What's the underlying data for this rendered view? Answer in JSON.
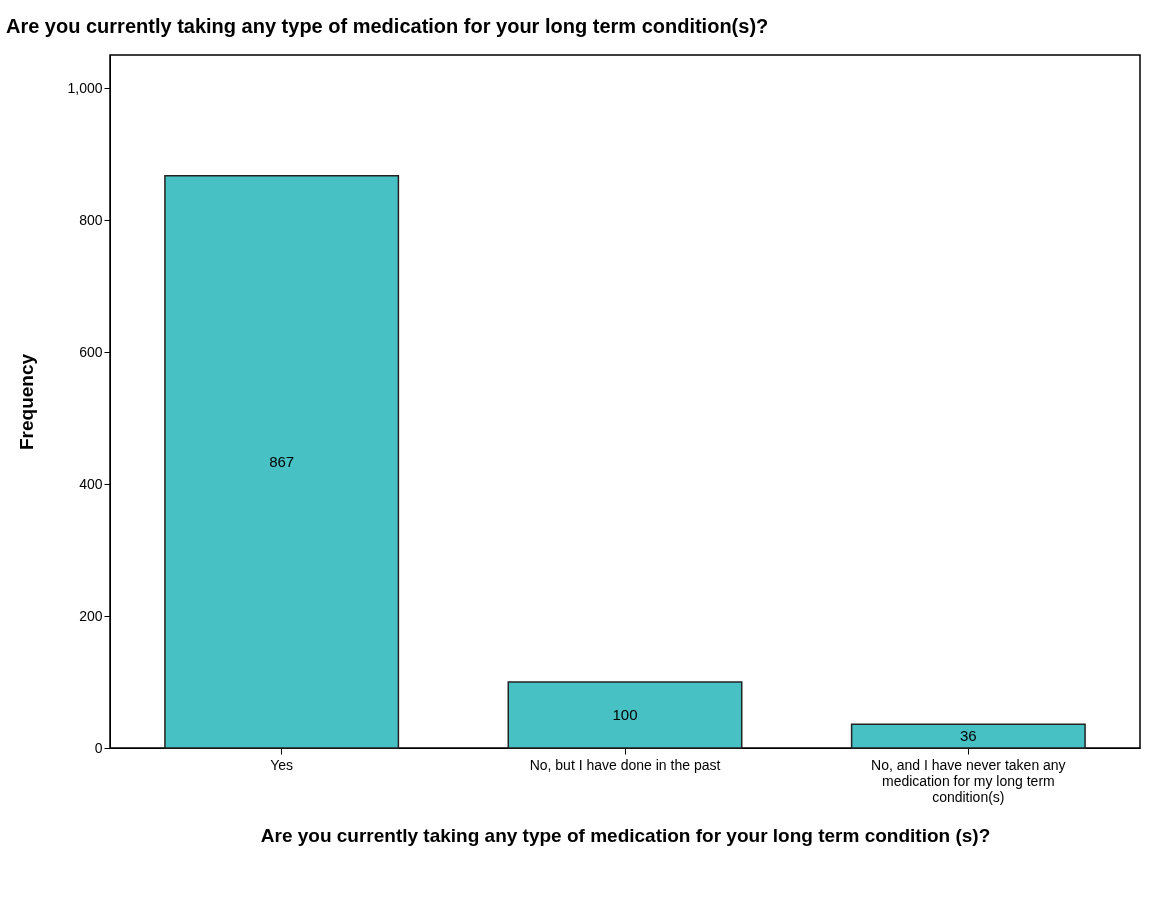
{
  "chart_data": {
    "type": "bar",
    "title": "Are you currently taking any type of medication for your long term condition(s)?",
    "xlabel": "Are you currently taking any type of medication for your long term condition (s)?",
    "ylabel": "Frequency",
    "categories": [
      "Yes",
      "No, but I have done in the past",
      "No, and I have never taken any medication for my long term condition(s)"
    ],
    "values": [
      867,
      100,
      36
    ],
    "color": "#48c1c5",
    "data_labels": true,
    "ylim": [
      0,
      1050
    ],
    "yticks": [
      0,
      200,
      400,
      600,
      800,
      {
        "value": 1000,
        "label": "1,000"
      }
    ],
    "grid": false
  }
}
